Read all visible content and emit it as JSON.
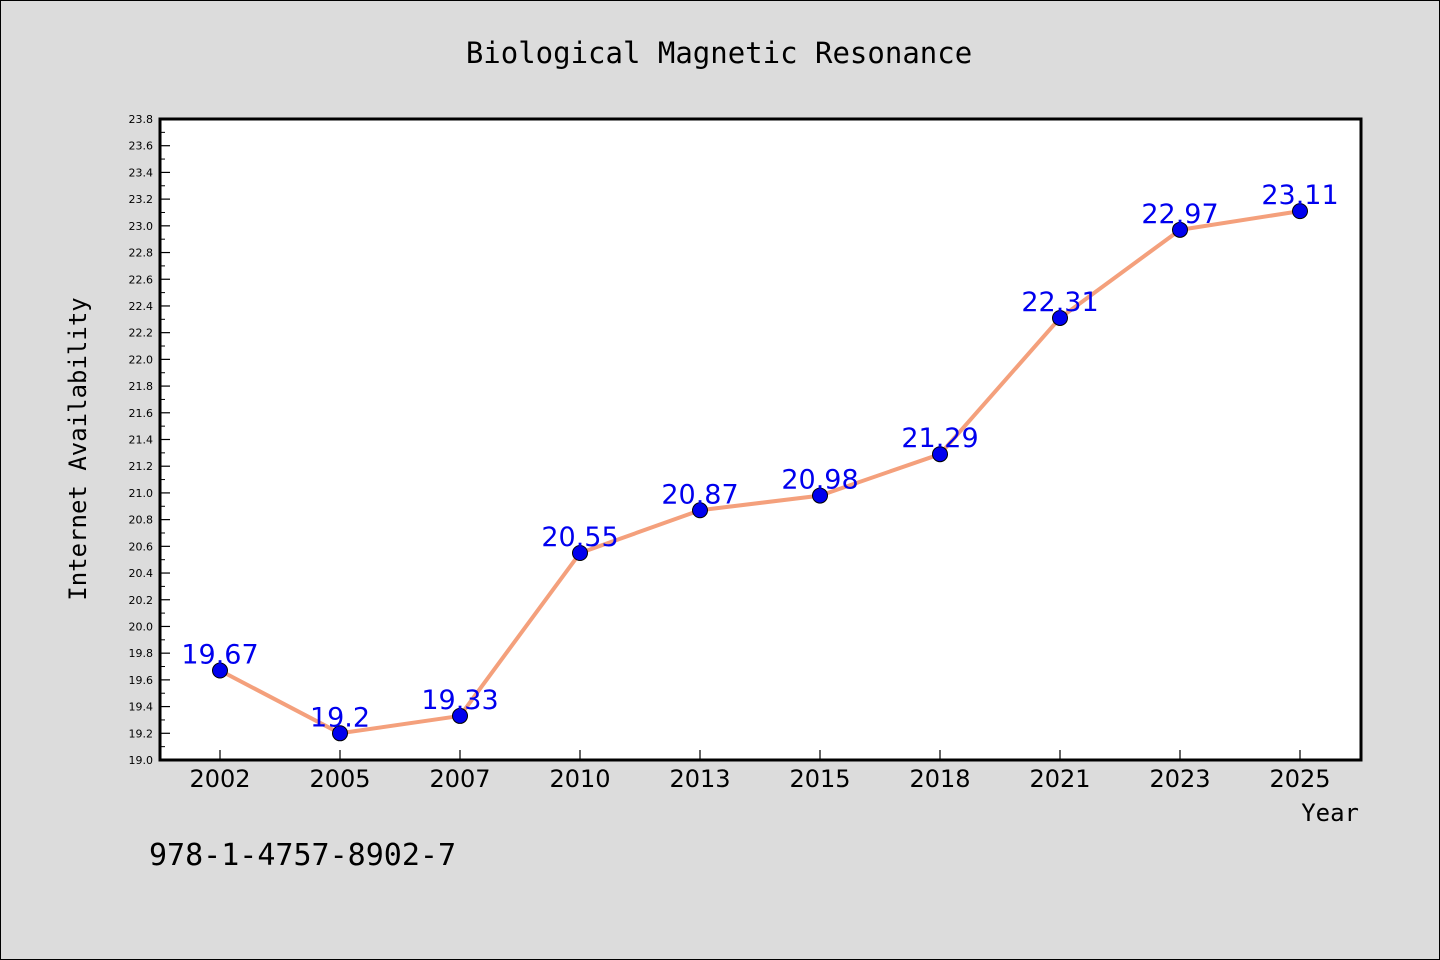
{
  "chart_data": {
    "type": "line",
    "title": "Biological Magnetic Resonance",
    "xlabel": "Year",
    "ylabel": "Internet Availability",
    "categories": [
      "2002",
      "2005",
      "2007",
      "2010",
      "2013",
      "2015",
      "2018",
      "2021",
      "2023",
      "2025"
    ],
    "series": [
      {
        "values": [
          19.67,
          19.2,
          19.33,
          20.55,
          20.87,
          20.98,
          21.29,
          22.31,
          22.97,
          23.11
        ],
        "value_labels": [
          "19.67",
          "19.2",
          "19.33",
          "20.55",
          "20.87",
          "20.98",
          "21.29",
          "22.31",
          "22.97",
          "23.11"
        ]
      }
    ],
    "ylim": [
      19.0,
      23.8
    ],
    "yticks": [
      "19.0",
      "19.2",
      "19.4",
      "19.6",
      "19.8",
      "20.0",
      "20.2",
      "20.4",
      "20.6",
      "20.8",
      "21.0",
      "21.2",
      "21.4",
      "21.6",
      "21.8",
      "22.0",
      "22.2",
      "22.4",
      "22.6",
      "22.8",
      "23.0",
      "23.2",
      "23.4",
      "23.6",
      "23.8"
    ],
    "grid": false,
    "line_color": "#f4a07c",
    "marker_color": "#0000ee",
    "label_color": "#0000ee",
    "plot_background": "#ffffff",
    "figure_background": "#dcdcdc"
  },
  "footer_text": "978-1-4757-8902-7"
}
